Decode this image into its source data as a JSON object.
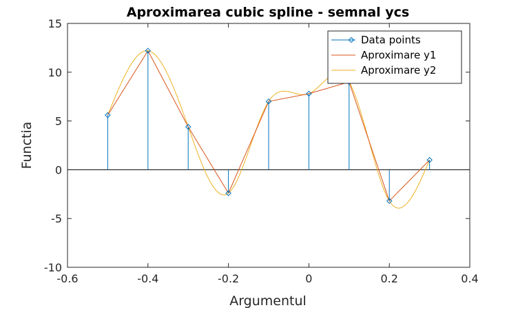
{
  "chart_data": {
    "type": "line",
    "title": "Aproximarea cubic spline - semnal ycs",
    "xlabel": "Argumentul",
    "ylabel": "Functia",
    "xlim": [
      -0.6,
      0.4
    ],
    "ylim": [
      -10,
      15
    ],
    "xticks": [
      -0.6,
      -0.4,
      -0.2,
      0,
      0.2,
      0.4
    ],
    "yticks": [
      -10,
      -5,
      0,
      5,
      10,
      15
    ],
    "xtick_labels": [
      "-0.6",
      "-0.4",
      "-0.2",
      "0",
      "0.2",
      "0.4"
    ],
    "ytick_labels": [
      "-10",
      "-5",
      "0",
      "5",
      "10",
      "15"
    ],
    "grid": false,
    "legend_position": "top-right",
    "series": [
      {
        "name": "Data points",
        "style": "stem",
        "color": "#0072BD",
        "x": [
          -0.5,
          -0.4,
          -0.3,
          -0.2,
          -0.1,
          0,
          0.1,
          0.2,
          0.3
        ],
        "y": [
          5.6,
          12.2,
          4.4,
          -2.4,
          7.0,
          7.8,
          9.0,
          -3.2,
          1.0
        ]
      },
      {
        "name": "Aproximare y1",
        "style": "line",
        "color": "#D95319",
        "x": [
          -0.5,
          -0.4,
          -0.3,
          -0.2,
          -0.1,
          0,
          0.1,
          0.2,
          0.3
        ],
        "y": [
          5.6,
          12.2,
          4.4,
          -2.4,
          7.0,
          7.8,
          9.0,
          -3.2,
          1.0
        ]
      },
      {
        "name": "Aproximare y2",
        "style": "spline",
        "color": "#EDB120",
        "x": [
          -0.5,
          -0.4,
          -0.3,
          -0.2,
          -0.1,
          0,
          0.1,
          0.2,
          0.3
        ],
        "y": [
          5.6,
          12.2,
          4.4,
          -2.4,
          7.0,
          7.8,
          9.0,
          -3.2,
          1.0
        ]
      }
    ]
  }
}
